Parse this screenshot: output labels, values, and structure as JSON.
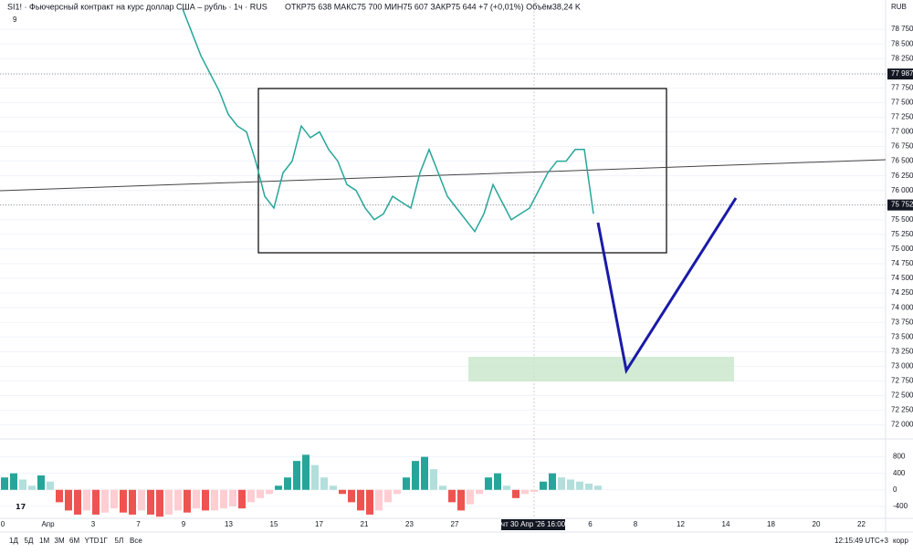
{
  "header": {
    "symbol": "SI1! · Фьючерсный контракт на курс доллар США – рубль · 1ч · RUS",
    "ohlc": "ОТКР75 638  МАКС75 700  МИН75 607  ЗАКР75 644  +7 (+0,01%)  Объём38,24 K",
    "indicators": "9",
    "currency": "RUB"
  },
  "chart_data": {
    "type": "line",
    "price": {
      "name": "SI1!",
      "color": "#26a69a",
      "values": [
        79100,
        78700,
        78300,
        78000,
        77700,
        77300,
        77100,
        77000,
        76500,
        75900,
        75700,
        76300,
        76500,
        77100,
        76900,
        77000,
        76700,
        76500,
        76100,
        76000,
        75700,
        75500,
        75600,
        75900,
        75800,
        75700,
        76300,
        76700,
        76300,
        75900,
        75700,
        75500,
        75300,
        75600,
        76100,
        75800,
        75500,
        75600,
        75700,
        76000,
        76300,
        76500,
        76500,
        76700,
        76700,
        75600
      ]
    },
    "ylim": [
      71760,
      79250
    ],
    "yticks": [
      {
        "value": 72000,
        "label": "72 000"
      },
      {
        "value": 72250,
        "label": "72 250"
      },
      {
        "value": 72500,
        "label": "72 500"
      },
      {
        "value": 72750,
        "label": "72 750"
      },
      {
        "value": 73000,
        "label": "73 000"
      },
      {
        "value": 73250,
        "label": "73 250"
      },
      {
        "value": 73500,
        "label": "73 500"
      },
      {
        "value": 73750,
        "label": "73 750"
      },
      {
        "value": 74000,
        "label": "74 000"
      },
      {
        "value": 74250,
        "label": "74 250"
      },
      {
        "value": 74500,
        "label": "74 500"
      },
      {
        "value": 74750,
        "label": "74 750"
      },
      {
        "value": 75000,
        "label": "75 000"
      },
      {
        "value": 75250,
        "label": "75 250"
      },
      {
        "value": 75500,
        "label": "75 500"
      },
      {
        "value": 75750,
        "label": "75 750"
      },
      {
        "value": 76000,
        "label": "76 000"
      },
      {
        "value": 76250,
        "label": "76 250"
      },
      {
        "value": 76500,
        "label": "76 500"
      },
      {
        "value": 76750,
        "label": "76 750"
      },
      {
        "value": 77000,
        "label": "77 000"
      },
      {
        "value": 77250,
        "label": "77 250"
      },
      {
        "value": 77500,
        "label": "77 500"
      },
      {
        "value": 77750,
        "label": "77 750"
      },
      {
        "value": 78000,
        "label": "78 000"
      },
      {
        "value": 78250,
        "label": "78 250"
      },
      {
        "value": 78500,
        "label": "78 500"
      },
      {
        "value": 78750,
        "label": "78 750"
      }
    ],
    "price_labels": [
      {
        "value": 77987,
        "label": "77 987"
      },
      {
        "value": 75752,
        "label": "75 752"
      }
    ],
    "oscillator": {
      "values": [
        300,
        400,
        250,
        100,
        350,
        200,
        -300,
        -500,
        -600,
        -500,
        -600,
        -550,
        -450,
        -550,
        -600,
        -500,
        -600,
        -650,
        -600,
        -500,
        -550,
        -450,
        -500,
        -500,
        -450,
        -400,
        -450,
        -300,
        -200,
        -100,
        100,
        300,
        700,
        850,
        600,
        300,
        100,
        -100,
        -300,
        -500,
        -600,
        -500,
        -300,
        -100,
        300,
        700,
        800,
        500,
        100,
        -300,
        -500,
        -350,
        -100,
        300,
        400,
        100,
        -200,
        -100,
        -50,
        200,
        400,
        300,
        250,
        200,
        150,
        100
      ],
      "ylim": [
        -690,
        1145
      ],
      "yticks": [
        -400,
        0,
        400,
        800
      ]
    },
    "categories": [
      "0",
      "Апр",
      "3",
      "7",
      "9",
      "13",
      "15",
      "17",
      "21",
      "23",
      "27",
      null,
      null,
      "6",
      "8",
      "12",
      "14",
      "18",
      "20",
      "22"
    ],
    "crosshair": "чт 30 Апр '26   16:00"
  },
  "footer": {
    "ranges": [
      "1Д",
      "5Д",
      "1М",
      "3М",
      "6М",
      "YTD",
      "1Г",
      "5Л",
      "Все"
    ],
    "clock": "12:15:49 UTC+3",
    "mode": "корр"
  }
}
